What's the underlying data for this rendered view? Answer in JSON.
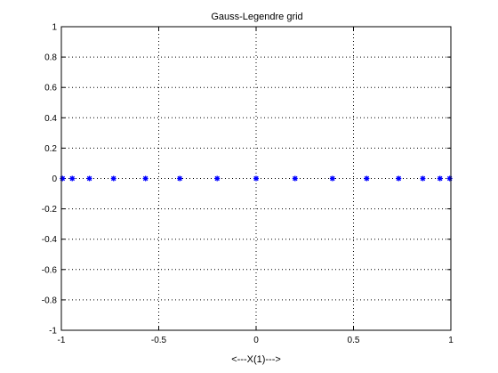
{
  "chart_data": {
    "type": "scatter",
    "title": "Gauss-Legendre grid",
    "xlabel": "<---X(1)--->",
    "ylabel": "",
    "xlim": [
      -1,
      1
    ],
    "ylim": [
      -1,
      1
    ],
    "xticks": [
      -1,
      -0.5,
      0,
      0.5,
      1
    ],
    "xtick_labels": [
      "-1",
      "-0.5",
      "0",
      "0.5",
      "1"
    ],
    "yticks": [
      -1,
      -0.8,
      -0.6,
      -0.4,
      -0.2,
      0,
      0.2,
      0.4,
      0.6,
      0.8,
      1
    ],
    "ytick_labels": [
      "-1",
      "-0.8",
      "-0.6",
      "-0.4",
      "-0.2",
      "0",
      "0.2",
      "0.4",
      "0.6",
      "0.8",
      "1"
    ],
    "grid": true,
    "grid_style": "dotted",
    "marker": "asterisk",
    "color": "#0000ff",
    "series": [
      {
        "x": [
          -0.994,
          -0.944,
          -0.856,
          -0.732,
          -0.568,
          -0.392,
          -0.2,
          0,
          0.2,
          0.392,
          0.568,
          0.732,
          0.856,
          0.944,
          0.994
        ],
        "y": [
          0,
          0,
          0,
          0,
          0,
          0,
          0,
          0,
          0,
          0,
          0,
          0,
          0,
          0,
          0
        ]
      }
    ]
  }
}
